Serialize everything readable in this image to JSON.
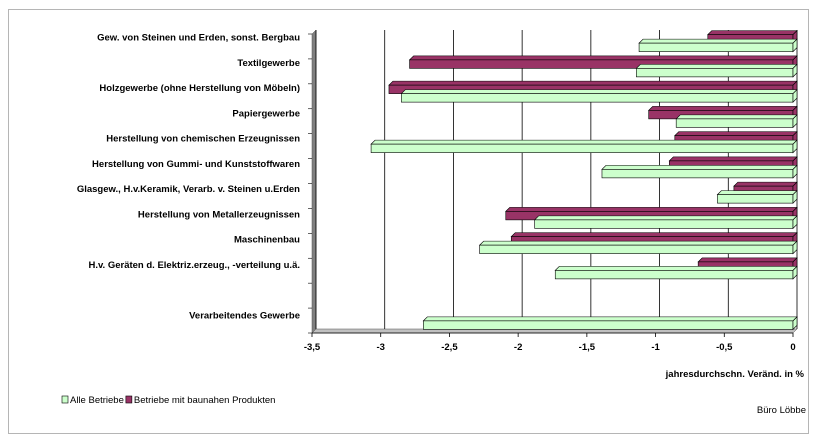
{
  "chart_data": {
    "type": "bar",
    "orientation": "horizontal",
    "categories": [
      "Gew. von Steinen und Erden, sonst. Bergbau",
      "Textilgewerbe",
      "Holzgewerbe (ohne Herstellung von Möbeln)",
      "Papiergewerbe",
      "Herstellung von chemischen Erzeugnissen",
      "Herstellung von Gummi- und Kunststoffwaren",
      "Glasgew., H.v.Keramik, Verarb. v. Steinen u.Erden",
      "Herstellung von Metallerzeugnissen",
      "Maschinenbau",
      "H.v. Geräten d. Elektriz.erzeug., -verteilung u.ä.",
      "",
      "Verarbeitendes Gewerbe"
    ],
    "series": [
      {
        "name": "Alle Betriebe",
        "color": "#ccffcc",
        "values": [
          -1.12,
          -1.14,
          -2.85,
          -0.85,
          -3.07,
          -1.39,
          -0.55,
          -1.88,
          -2.28,
          -1.73,
          null,
          -2.69
        ]
      },
      {
        "name": "Betriebe mit baunahen Produkten",
        "color": "#993366",
        "values": [
          -0.62,
          -2.79,
          -2.94,
          -1.05,
          -0.86,
          -0.9,
          -0.43,
          -2.09,
          -2.05,
          -0.69,
          null,
          null
        ]
      }
    ],
    "xlim": [
      -3.5,
      0
    ],
    "xticks": [
      "-3,5",
      "-3",
      "-2,5",
      "-2",
      "-1,5",
      "-1",
      "-0,5",
      "0"
    ],
    "xtick_values": [
      -3.5,
      -3,
      -2.5,
      -2,
      -1.5,
      -1,
      -0.5,
      0
    ],
    "xlabel": "jahresdurchschn. Veränd. in %",
    "grid": true,
    "legend_position": "bottom-left",
    "plot_background": "#ffffff",
    "wall_color": "#808080"
  },
  "credit": "Büro Löbbe"
}
